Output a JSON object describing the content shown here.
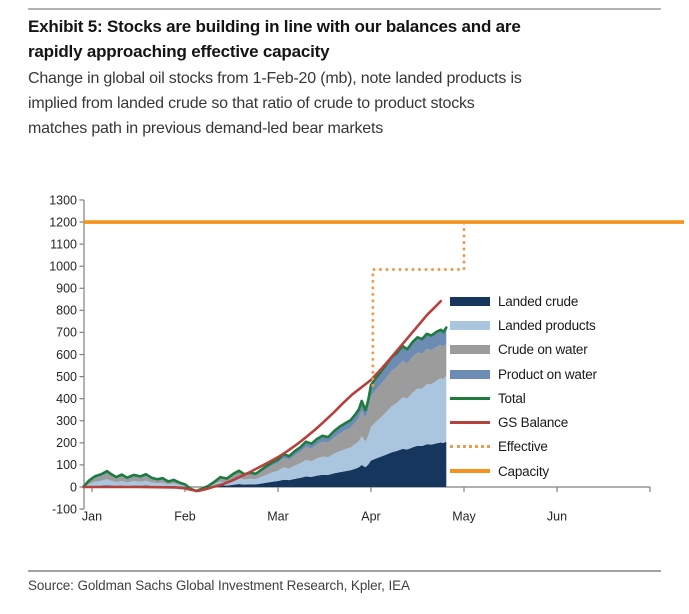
{
  "header": {
    "title": "Exhibit 5: Stocks are building in line with our balances and are\nrapidly approaching effective capacity",
    "subtitle": "Change in global oil stocks from 1-Feb-20 (mb), note landed products is\nimplied from landed crude so that ratio of crude to product stocks\nmatches path in previous demand-led bear markets"
  },
  "footer": {
    "source": "Source: Goldman Sachs Global Investment Research, Kpler, IEA"
  },
  "colors": {
    "landed_crude": "#17365d",
    "landed_products": "#a9c6de",
    "crude_on_water": "#9c9c9c",
    "product_on_water": "#6d8cb4",
    "total": "#1e7b3e",
    "gs_balance": "#b5413c",
    "effective": "#ef9b4d",
    "capacity": "#f6921e",
    "axis": "#808080",
    "tick_text": "#262626"
  },
  "chart_data": {
    "type": "area",
    "title": "Change in global oil stocks from 1-Feb-20 (mb)",
    "xlabel": "",
    "ylabel": "mb",
    "grid": false,
    "legend_position": "inside-right",
    "ylim": [
      -100,
      1300
    ],
    "ytick_step": 100,
    "x_unit": "months since 1-Jan-2020 (0 = Jan 1)",
    "xlim": [
      -0.09,
      6.35
    ],
    "month_ticks": [
      0,
      1,
      2,
      3,
      4,
      5,
      6
    ],
    "month_labels": [
      "Jan",
      "Feb",
      "Mar",
      "Apr",
      "May",
      "Jun",
      ""
    ],
    "capacity_level": 1200,
    "effective_step": {
      "x_start": 3.02,
      "y_start": 460,
      "level": 985,
      "x_end": 4.0,
      "y_end": 1200
    },
    "stack_order": [
      "landed_crude",
      "landed_products",
      "crude_on_water",
      "product_on_water"
    ],
    "stack_end_x": 3.81,
    "composition_keyframes": [
      {
        "x": -0.09,
        "fractions": {
          "landed_crude": 0.1,
          "landed_products": 0.38,
          "crude_on_water": 0.37,
          "product_on_water": 0.15
        }
      },
      {
        "x": 1.0,
        "fractions": {
          "landed_crude": 0.13,
          "landed_products": 0.38,
          "crude_on_water": 0.34,
          "product_on_water": 0.15
        }
      },
      {
        "x": 2.0,
        "fractions": {
          "landed_crude": 0.22,
          "landed_products": 0.38,
          "crude_on_water": 0.28,
          "product_on_water": 0.12
        }
      },
      {
        "x": 3.0,
        "fractions": {
          "landed_crude": 0.26,
          "landed_products": 0.33,
          "crude_on_water": 0.3,
          "product_on_water": 0.11
        }
      },
      {
        "x": 3.81,
        "fractions": {
          "landed_crude": 0.285,
          "landed_products": 0.415,
          "crude_on_water": 0.205,
          "product_on_water": 0.095
        }
      }
    ],
    "total_series": [
      [
        -0.09,
        2
      ],
      [
        -0.03,
        30
      ],
      [
        0.03,
        48
      ],
      [
        0.1,
        58
      ],
      [
        0.16,
        72
      ],
      [
        0.2,
        60
      ],
      [
        0.26,
        45
      ],
      [
        0.32,
        56
      ],
      [
        0.38,
        42
      ],
      [
        0.45,
        55
      ],
      [
        0.52,
        48
      ],
      [
        0.58,
        58
      ],
      [
        0.64,
        42
      ],
      [
        0.7,
        35
      ],
      [
        0.76,
        40
      ],
      [
        0.82,
        25
      ],
      [
        0.88,
        32
      ],
      [
        0.94,
        20
      ],
      [
        1.0,
        12
      ],
      [
        1.06,
        -8
      ],
      [
        1.12,
        -18
      ],
      [
        1.18,
        -8
      ],
      [
        1.25,
        5
      ],
      [
        1.32,
        25
      ],
      [
        1.38,
        45
      ],
      [
        1.45,
        38
      ],
      [
        1.52,
        60
      ],
      [
        1.58,
        74
      ],
      [
        1.64,
        58
      ],
      [
        1.7,
        65
      ],
      [
        1.76,
        60
      ],
      [
        1.82,
        78
      ],
      [
        1.88,
        95
      ],
      [
        1.94,
        112
      ],
      [
        2.0,
        124
      ],
      [
        2.06,
        148
      ],
      [
        2.12,
        140
      ],
      [
        2.18,
        162
      ],
      [
        2.24,
        180
      ],
      [
        2.3,
        205
      ],
      [
        2.36,
        196
      ],
      [
        2.42,
        218
      ],
      [
        2.48,
        232
      ],
      [
        2.54,
        226
      ],
      [
        2.6,
        252
      ],
      [
        2.66,
        272
      ],
      [
        2.72,
        288
      ],
      [
        2.78,
        302
      ],
      [
        2.83,
        328
      ],
      [
        2.87,
        352
      ],
      [
        2.9,
        390
      ],
      [
        2.94,
        348
      ],
      [
        2.97,
        392
      ],
      [
        3.0,
        462
      ],
      [
        3.05,
        492
      ],
      [
        3.1,
        518
      ],
      [
        3.16,
        552
      ],
      [
        3.22,
        588
      ],
      [
        3.28,
        608
      ],
      [
        3.34,
        638
      ],
      [
        3.39,
        624
      ],
      [
        3.45,
        658
      ],
      [
        3.5,
        678
      ],
      [
        3.55,
        670
      ],
      [
        3.6,
        694
      ],
      [
        3.65,
        686
      ],
      [
        3.71,
        704
      ],
      [
        3.75,
        712
      ],
      [
        3.78,
        702
      ],
      [
        3.81,
        722
      ]
    ],
    "gs_balance_series": [
      [
        -0.09,
        0
      ],
      [
        0.5,
        0
      ],
      [
        0.9,
        -2
      ],
      [
        1.0,
        -6
      ],
      [
        1.08,
        -14
      ],
      [
        1.14,
        -18
      ],
      [
        1.22,
        -10
      ],
      [
        1.3,
        0
      ],
      [
        1.4,
        12
      ],
      [
        1.5,
        28
      ],
      [
        1.6,
        48
      ],
      [
        1.7,
        68
      ],
      [
        1.8,
        90
      ],
      [
        1.9,
        112
      ],
      [
        2.0,
        135
      ],
      [
        2.1,
        162
      ],
      [
        2.2,
        192
      ],
      [
        2.3,
        225
      ],
      [
        2.4,
        260
      ],
      [
        2.5,
        298
      ],
      [
        2.6,
        338
      ],
      [
        2.7,
        380
      ],
      [
        2.8,
        420
      ],
      [
        2.9,
        452
      ],
      [
        3.0,
        485
      ],
      [
        3.1,
        530
      ],
      [
        3.2,
        578
      ],
      [
        3.3,
        628
      ],
      [
        3.4,
        678
      ],
      [
        3.5,
        728
      ],
      [
        3.6,
        778
      ],
      [
        3.7,
        820
      ],
      [
        3.75,
        842
      ]
    ],
    "legend": [
      {
        "id": "landed-crude",
        "label": "Landed crude",
        "swatch": "rect",
        "color": "#17365d"
      },
      {
        "id": "landed-products",
        "label": "Landed products",
        "swatch": "rect",
        "color": "#a9c6de"
      },
      {
        "id": "crude-on-water",
        "label": "Crude on water",
        "swatch": "rect",
        "color": "#9c9c9c"
      },
      {
        "id": "product-on-water",
        "label": "Product on water",
        "swatch": "rect",
        "color": "#6d8cb4"
      },
      {
        "id": "total",
        "label": "Total",
        "swatch": "line",
        "color": "#1e7b3e"
      },
      {
        "id": "gs-balance",
        "label": "GS Balance",
        "swatch": "line",
        "color": "#b5413c"
      },
      {
        "id": "effective",
        "label": "Effective",
        "swatch": "dotted",
        "color": "#ef9b4d"
      },
      {
        "id": "capacity",
        "label": "Capacity",
        "swatch": "line",
        "color": "#f6921e"
      }
    ]
  }
}
